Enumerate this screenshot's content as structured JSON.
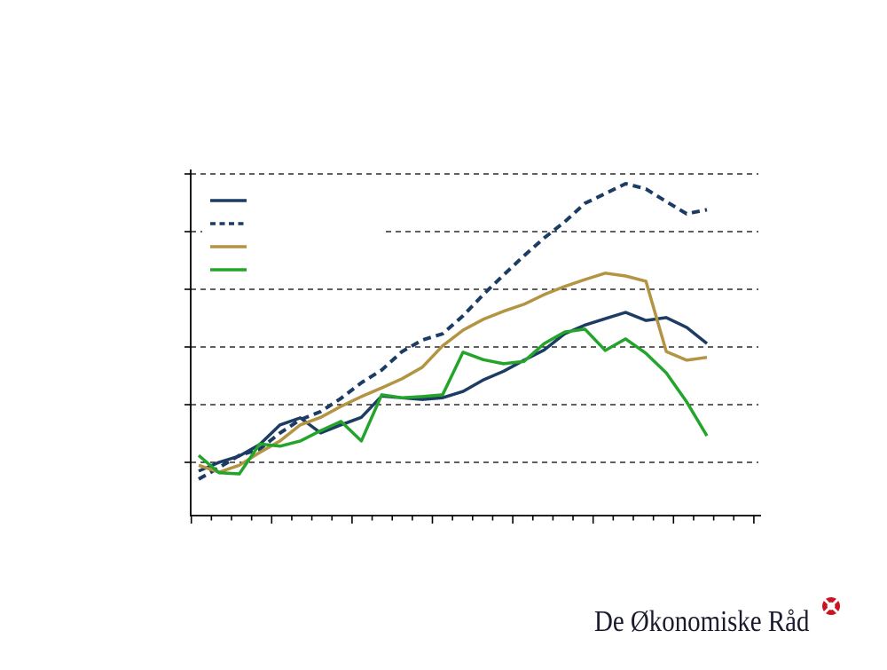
{
  "logo": {
    "text": "De Økonomiske Råd"
  },
  "colors": {
    "navy": "#1c3c63",
    "tan": "#b39443",
    "green": "#23a42b",
    "grid": "#000000",
    "axis": "#000000",
    "logo_text": "#1a1a2e",
    "logo_red": "#cb1423",
    "legend_background": "#ffffff"
  },
  "chart_data": {
    "type": "line",
    "title": "",
    "xlabel": "",
    "ylabel": "",
    "x": [
      1,
      2,
      3,
      4,
      5,
      6,
      7,
      8,
      9,
      10,
      11,
      12,
      13,
      14,
      15,
      16,
      17,
      18,
      19,
      20,
      21,
      22,
      23,
      24,
      25,
      26
    ],
    "series": [
      {
        "name": "navy-solid-line",
        "color_key": "navy",
        "style": "solid",
        "values": [
          98.5,
          100.0,
          101.1,
          103.1,
          106.5,
          107.7,
          105.1,
          106.5,
          107.8,
          111.5,
          111.2,
          110.9,
          111.2,
          112.3,
          114.3,
          115.8,
          117.7,
          119.5,
          122.3,
          123.8,
          124.9,
          126.0,
          124.6,
          125.1,
          123.4,
          120.6
        ]
      },
      {
        "name": "navy-dashed-line",
        "color_key": "navy",
        "style": "dashed",
        "values": [
          97.1,
          99.1,
          101.2,
          102.3,
          105.1,
          107.4,
          108.8,
          111.1,
          113.8,
          116.0,
          119.2,
          121.2,
          122.3,
          125.4,
          129.1,
          132.5,
          135.8,
          138.9,
          141.7,
          144.9,
          146.6,
          148.3,
          147.4,
          145.2,
          143.1,
          143.8
        ]
      },
      {
        "name": "tan-solid-line",
        "color_key": "tan",
        "style": "solid",
        "values": [
          99.5,
          98.3,
          99.5,
          101.7,
          103.7,
          106.5,
          107.8,
          109.7,
          111.4,
          112.9,
          114.5,
          116.5,
          120.2,
          122.9,
          124.8,
          126.2,
          127.4,
          129.1,
          130.5,
          131.7,
          132.8,
          132.3,
          131.4,
          119.2,
          117.7,
          118.2
        ]
      },
      {
        "name": "green-solid-line",
        "color_key": "green",
        "style": "solid",
        "values": [
          101.2,
          98.2,
          98.0,
          103.2,
          102.8,
          103.7,
          105.5,
          107.1,
          103.7,
          111.7,
          111.2,
          111.4,
          111.7,
          119.1,
          117.8,
          117.1,
          117.5,
          120.6,
          122.6,
          123.1,
          119.4,
          121.4,
          118.9,
          115.5,
          110.5,
          104.6
        ]
      }
    ],
    "gridlines": [
      100,
      110,
      120,
      130,
      140,
      150
    ],
    "ylim": [
      90.8,
      150
    ],
    "grid_on": true,
    "axis_tick_labels_visible": false,
    "x_minor_tick_count": 29,
    "x_major_tick_every": 4,
    "legend": {
      "position": "top-left",
      "entries": [
        {
          "label": "",
          "color_key": "navy",
          "style": "solid"
        },
        {
          "label": "",
          "color_key": "navy",
          "style": "dashed"
        },
        {
          "label": "",
          "color_key": "tan",
          "style": "solid"
        },
        {
          "label": "",
          "color_key": "green",
          "style": "solid"
        }
      ]
    }
  }
}
